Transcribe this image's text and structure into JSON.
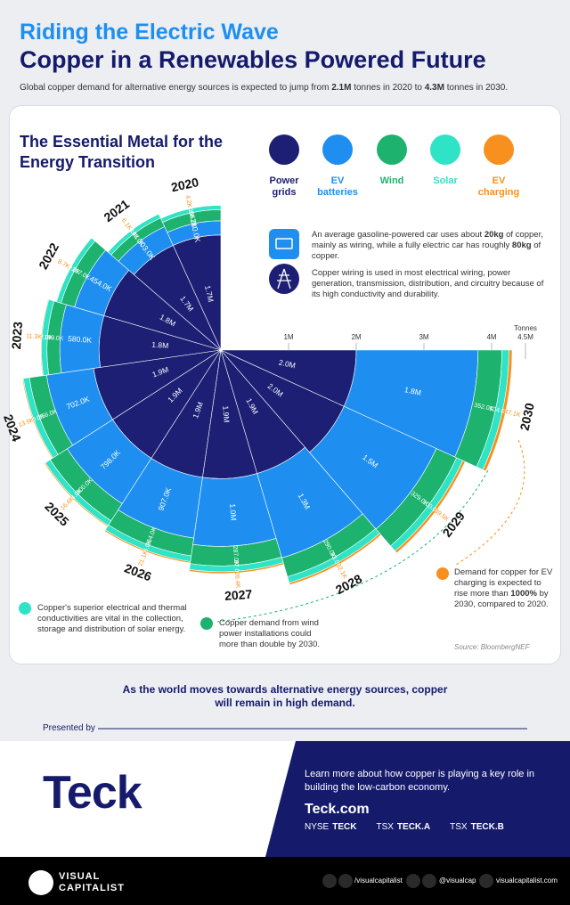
{
  "header": {
    "title_line1": "Riding the Electric Wave",
    "title_line2": "Copper in a Renewables Powered Future",
    "subtitle": [
      "Global copper demand for alternative energy sources is expected to jump from ",
      "2.1M",
      " tonnes in 2020 to ",
      "4.3M",
      " tonnes in 2030."
    ]
  },
  "chart_data": {
    "type": "polar-stacked-bar",
    "title": "The Essential Metal for the Energy Transition",
    "categories": [
      "2020",
      "2021",
      "2022",
      "2023",
      "2024",
      "2025",
      "2026",
      "2027",
      "2028",
      "2029",
      "2030"
    ],
    "series": [
      {
        "name": "Power grids",
        "color": "#1c1f73",
        "values": [
          1700000,
          1700000,
          1800000,
          1800000,
          1900000,
          1900000,
          1900000,
          1900000,
          1900000,
          2000000,
          2000000
        ],
        "value_labels": [
          "1.7M",
          "1.7M",
          "1.8M",
          "1.8M",
          "1.9M",
          "1.9M",
          "1.9M",
          "1.9M",
          "1.9M",
          "2.0M",
          "2.0M"
        ]
      },
      {
        "name": "EV batteries",
        "color": "#1e8ff0",
        "values": [
          210000,
          303000,
          454000,
          580000,
          702000,
          798000,
          907000,
          1000000,
          1300000,
          1500000,
          1800000
        ],
        "value_labels": [
          "210.0K",
          "303.0K",
          "454.0K",
          "580.0K",
          "702.0K",
          "798.0K",
          "907.0K",
          "1.0M",
          "1.3M",
          "1.5M",
          "1.8M"
        ]
      },
      {
        "name": "Wind",
        "color": "#1db36e",
        "values": [
          165000,
          143000,
          207000,
          189000,
          256000,
          300000,
          264000,
          287000,
          290000,
          329000,
          352000
        ],
        "value_labels": [
          "165.0K",
          "143.0K",
          "207.0K",
          "189.0K",
          "256.0K",
          "300.0K",
          "264.0K",
          "287.0K",
          "290.0K",
          "329.0K",
          "352.0K"
        ]
      },
      {
        "name": "Solar",
        "color": "#2ee3c6",
        "values": [
          63000,
          63000,
          70000,
          82000,
          90000,
          84000,
          86000,
          87000,
          93000,
          100000,
          104000
        ],
        "value_labels": [
          "63.0K",
          "63.0K",
          "70.0K",
          "82.0K",
          "90.0K",
          "84.0K",
          "86.0K",
          "87.0K",
          "93.0K",
          "100.0K",
          "104.0K"
        ]
      },
      {
        "name": "EV charging",
        "color": "#f7901e",
        "values": [
          4200,
          6100,
          8700,
          11300,
          13900,
          16600,
          21100,
          26400,
          32100,
          39500,
          47100
        ],
        "value_labels": [
          "4.2K",
          "6.1K",
          "8.7K",
          "11.3K",
          "13.9K",
          "16.6K",
          "21.1K",
          "26.4K",
          "32.1K",
          "39.5K",
          "47.1K"
        ]
      }
    ],
    "xlim": [
      0,
      4500000
    ],
    "xticks": [
      {
        "value": 1000000,
        "label": "1M"
      },
      {
        "value": 2000000,
        "label": "2M"
      },
      {
        "value": 3000000,
        "label": "3M"
      },
      {
        "value": 4000000,
        "label": "4M"
      },
      {
        "value": 4500000,
        "label": "4.5M"
      }
    ],
    "xlabel": "Tonnes",
    "source": "Source: BloombergNEF"
  },
  "notes": {
    "ev": [
      "An average gasoline-powered car uses about ",
      "20kg",
      " of copper, mainly as wiring, while a fully electric car has roughly ",
      "80kg",
      " of copper."
    ],
    "grid": "Copper wiring is used in most electrical wiring, power generation, transmission, distribution, and circuitry because of its high conductivity and durability.",
    "solar": "Copper's superior electrical and thermal conductivities are vital in the collection, storage and distribution of solar energy.",
    "wind": "Copper demand from wind power installations could more than double by 2030.",
    "charging": [
      "Demand for copper for EV charging is expected to rise more than ",
      "1000%",
      " by 2030, compared to 2020."
    ]
  },
  "closing": "As the world moves towards alternative energy sources, copper will remain in high demand.",
  "sponsor": {
    "presented_by": "Presented by",
    "logo": "Teck",
    "blurb": "Learn more about how copper is playing a key role in building the low-carbon economy.",
    "url": "Teck.com",
    "listings": [
      [
        "NYSE",
        "TECK"
      ],
      [
        "TSX",
        "TECK.A"
      ],
      [
        "TSX",
        "TECK.B"
      ]
    ]
  },
  "footer": {
    "brand_line1": "VISUAL",
    "brand_line2": "CAPITALIST",
    "facebook": "/visualcapitalist",
    "twitter": "@visualcap",
    "website": "visualcapitalist.com"
  }
}
